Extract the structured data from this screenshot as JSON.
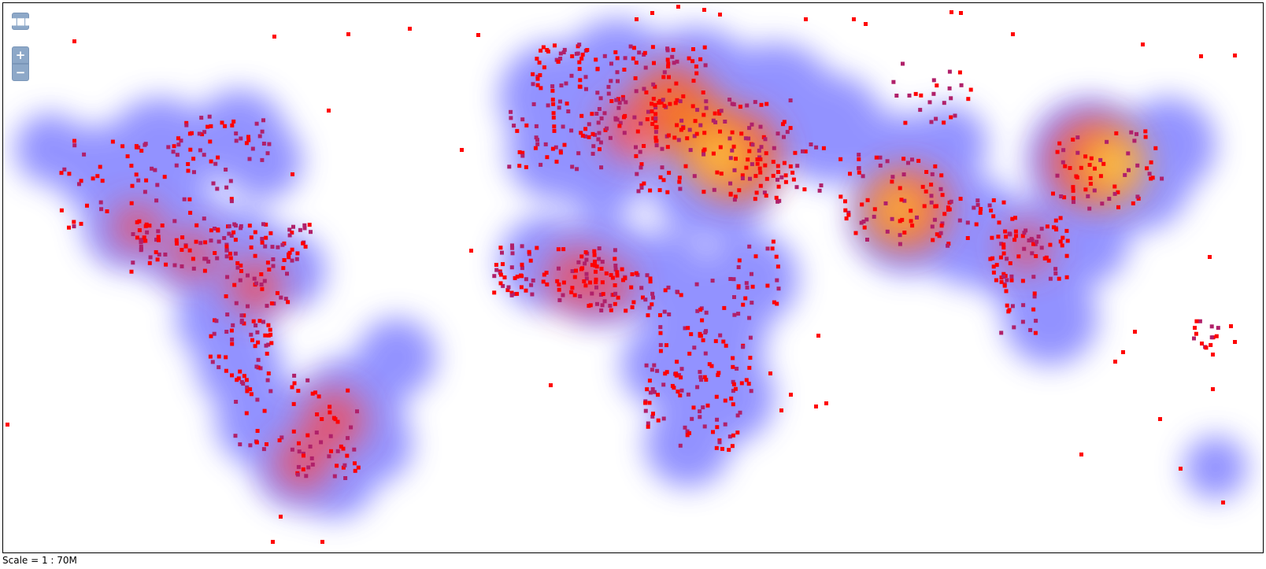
{
  "controls": {
    "menu_icon": "ellipsis-icon",
    "zoom_in_label": "+",
    "zoom_out_label": "−"
  },
  "scale": {
    "text": "Scale = 1 : 70M"
  },
  "heatmap": {
    "gradient_colors": [
      "#8080ff",
      "#ff4040",
      "#ff8800",
      "#ffff60"
    ],
    "point_color": "#ff0000",
    "point_color_dense": "#b0206a"
  }
}
